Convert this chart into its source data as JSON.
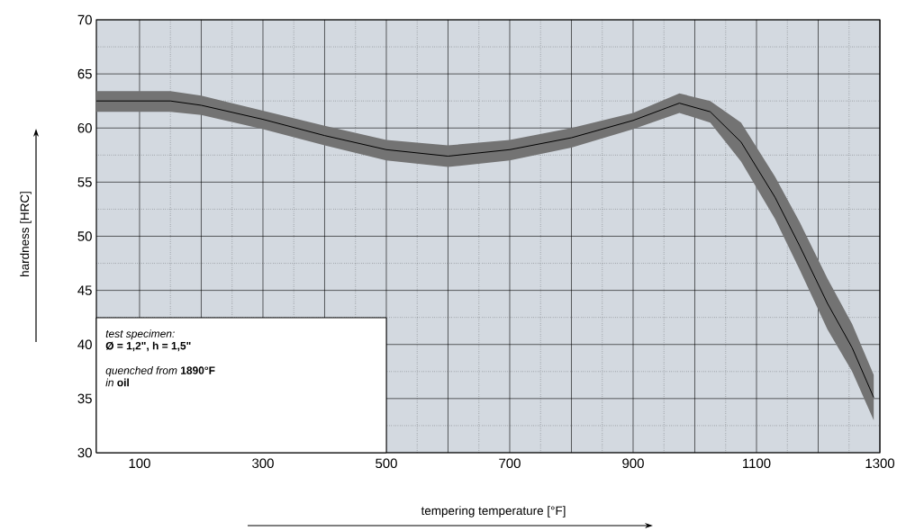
{
  "chart_data": {
    "type": "line",
    "xlabel": "tempering temperature [°F]",
    "ylabel": "hardness [HRC]",
    "x": [
      30,
      150,
      200,
      300,
      400,
      500,
      600,
      700,
      800,
      900,
      975,
      1025,
      1075,
      1130,
      1170,
      1215,
      1255,
      1290
    ],
    "series": [
      {
        "color": "#000000",
        "values": [
          62.5,
          62.5,
          62.1,
          60.8,
          59.3,
          58.0,
          57.4,
          58.0,
          59.1,
          60.7,
          62.3,
          61.5,
          58.7,
          53.6,
          49.1,
          43.8,
          39.7,
          35.1
        ],
        "lower": [
          61.5,
          61.5,
          61.2,
          59.9,
          58.4,
          57.0,
          56.4,
          57.0,
          58.2,
          59.9,
          61.4,
          60.5,
          56.9,
          51.6,
          46.9,
          41.4,
          37.5,
          33.0
        ],
        "upper": [
          63.4,
          63.4,
          63.0,
          61.6,
          60.2,
          58.9,
          58.4,
          58.9,
          60.0,
          61.4,
          63.2,
          62.5,
          60.5,
          55.5,
          51.3,
          46.1,
          41.9,
          37.2
        ]
      }
    ],
    "xlim": [
      30,
      1300
    ],
    "ylim": [
      30,
      70
    ],
    "xticks": [
      100,
      {
        "value": 200,
        "label": null
      },
      300,
      {
        "value": 400,
        "label": null
      },
      500,
      {
        "value": 600,
        "label": null
      },
      700,
      {
        "value": 800,
        "label": null
      },
      900,
      {
        "value": 1000,
        "label": null
      },
      1100,
      {
        "value": 1200,
        "label": null
      },
      1300
    ],
    "yticks": [
      30,
      35,
      40,
      45,
      50,
      55,
      60,
      65,
      70
    ],
    "grid": true,
    "annotations": [
      "*test specimen:*",
      "**Ø = 1,2\", h = 1,5\"**",
      "*quenched from* **1890°F**",
      "*in* **oil**"
    ]
  }
}
